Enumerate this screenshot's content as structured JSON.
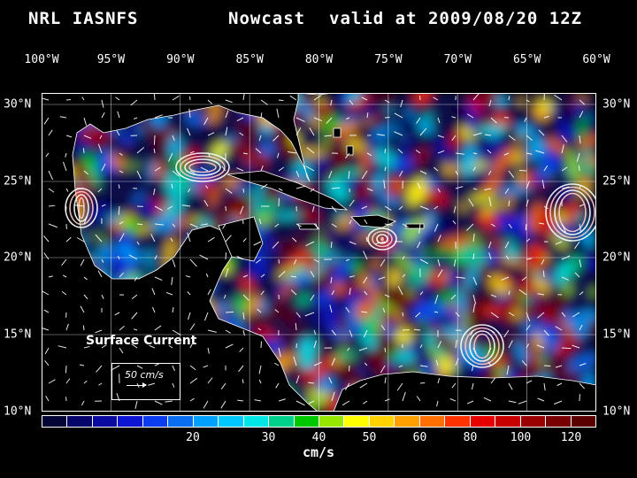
{
  "title": {
    "model": "NRL IASNFS",
    "product": "Nowcast",
    "valid": "valid at 2009/08/20 12Z"
  },
  "lon_labels": [
    "100°W",
    "95°W",
    "90°W",
    "85°W",
    "80°W",
    "75°W",
    "70°W",
    "65°W",
    "60°W"
  ],
  "lat_labels": [
    "30°N",
    "25°N",
    "20°N",
    "15°N",
    "10°N"
  ],
  "map_layer": "surface-current-speed",
  "legend": {
    "text": "Surface Current",
    "ref_label": "50 cm/s"
  },
  "colorbar": {
    "colors": [
      "#050535",
      "#06066a",
      "#0a0aa0",
      "#0d14d2",
      "#0a3cf0",
      "#0a6ef0",
      "#00a0ff",
      "#00c8ff",
      "#00e6e6",
      "#00d28c",
      "#00c800",
      "#96e600",
      "#ffff00",
      "#ffd200",
      "#ffa000",
      "#ff6e00",
      "#ff3200",
      "#e60000",
      "#c80000",
      "#9b0000",
      "#780000",
      "#5a0000"
    ],
    "ticks": [
      {
        "label": "20",
        "index": 6
      },
      {
        "label": "30",
        "index": 9
      },
      {
        "label": "40",
        "index": 11
      },
      {
        "label": "50",
        "index": 13
      },
      {
        "label": "60",
        "index": 15
      },
      {
        "label": "80",
        "index": 17
      },
      {
        "label": "100",
        "index": 19
      },
      {
        "label": "120",
        "index": 21
      }
    ],
    "unit": "cm/s"
  }
}
